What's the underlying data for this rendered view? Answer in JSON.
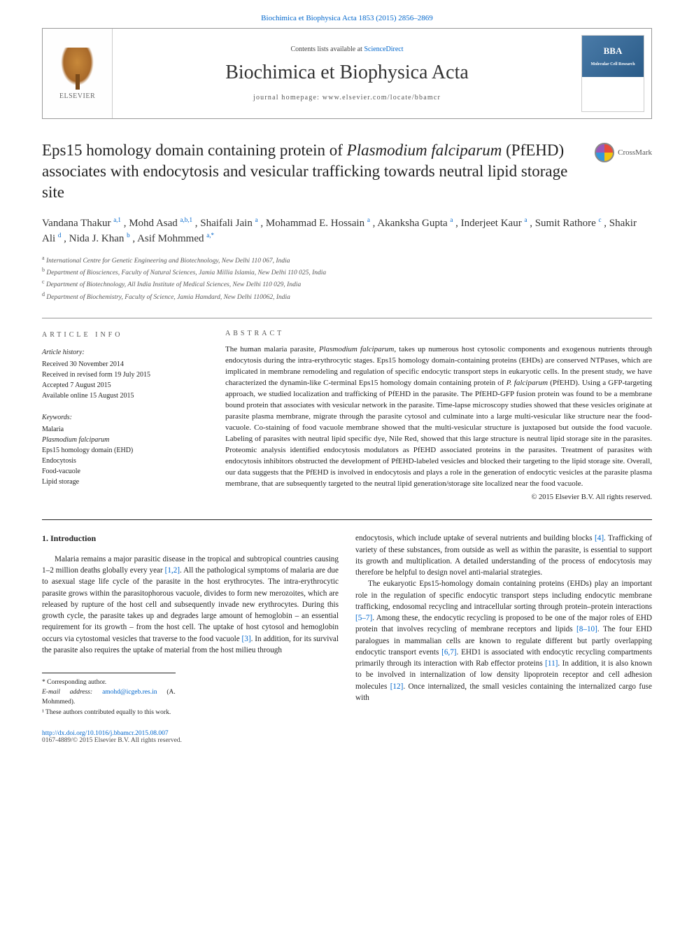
{
  "header": {
    "top_link_label": "Biochimica et Biophysica Acta 1853 (2015) 2856–2869",
    "contents_prefix": "Contents lists available at ",
    "contents_link": "ScienceDirect",
    "journal_title": "Biochimica et Biophysica Acta",
    "homepage_label": "journal homepage: www.elsevier.com/locate/bbamcr",
    "elsevier": "ELSEVIER",
    "cover_text": "BBA",
    "cover_sub": "Molecular Cell Research"
  },
  "crossmark": {
    "label": "CrossMark"
  },
  "title": {
    "pre": "Eps15 homology domain containing protein of ",
    "ital": "Plasmodium falciparum",
    "post": " (PfEHD) associates with endocytosis and vesicular trafficking towards neutral lipid storage site"
  },
  "authors": {
    "a1": "Vandana Thakur ",
    "a1sup": "a,1",
    "a2": ", Mohd Asad ",
    "a2sup": "a,b,1",
    "a3": ", Shaifali Jain ",
    "a3sup": "a",
    "a4": ", Mohammad E. Hossain ",
    "a4sup": "a",
    "a5": ", Akanksha Gupta ",
    "a5sup": "a",
    "a6": ", Inderjeet Kaur ",
    "a6sup": "a",
    "a7": ", Sumit Rathore ",
    "a7sup": "c",
    "a8": ", Shakir Ali ",
    "a8sup": "d",
    "a9": ", Nida J. Khan ",
    "a9sup": "b",
    "a10": ", Asif Mohmmed ",
    "a10sup": "a,*"
  },
  "affil": {
    "a": "International Centre for Genetic Engineering and Biotechnology, New Delhi 110 067, India",
    "b": "Department of Biosciences, Faculty of Natural Sciences, Jamia Millia Islamia, New Delhi 110 025, India",
    "c": "Department of Biotechnology, All India Institute of Medical Sciences, New Delhi 110 029, India",
    "d": "Department of Biochemistry, Faculty of Science, Jamia Hamdard, New Delhi 110062, India"
  },
  "info": {
    "head": "article info",
    "history_label": "Article history:",
    "h1": "Received 30 November 2014",
    "h2": "Received in revised form 19 July 2015",
    "h3": "Accepted 7 August 2015",
    "h4": "Available online 15 August 2015",
    "keywords_label": "Keywords:",
    "k1": "Malaria",
    "k2": "Plasmodium falciparum",
    "k3": "Eps15 homology domain (EHD)",
    "k4": "Endocytosis",
    "k5": "Food-vacuole",
    "k6": "Lipid storage"
  },
  "abstract": {
    "head": "abstract",
    "text_pre": "The human malaria parasite, ",
    "text_ital1": "Plasmodium falciparum",
    "text_mid": ", takes up numerous host cytosolic components and exogenous nutrients through endocytosis during the intra-erythrocytic stages. Eps15 homology domain-containing proteins (EHDs) are conserved NTPases, which are implicated in membrane remodeling and regulation of specific endocytic transport steps in eukaryotic cells. In the present study, we have characterized the dynamin-like C-terminal Eps15 homology domain containing protein of ",
    "text_ital2": "P. falciparum",
    "text_post": " (PfEHD). Using a GFP-targeting approach, we studied localization and trafficking of PfEHD in the parasite. The PfEHD-GFP fusion protein was found to be a membrane bound protein that associates with vesicular network in the parasite. Time-lapse microscopy studies showed that these vesicles originate at parasite plasma membrane, migrate through the parasite cytosol and culminate into a large multi-vesicular like structure near the food-vacuole. Co-staining of food vacuole membrane showed that the multi-vesicular structure is juxtaposed but outside the food vacuole. Labeling of parasites with neutral lipid specific dye, Nile Red, showed that this large structure is neutral lipid storage site in the parasites. Proteomic analysis identified endocytosis modulators as PfEHD associated proteins in the parasites. Treatment of parasites with endocytosis inhibitors obstructed the development of PfEHD-labeled vesicles and blocked their targeting to the lipid storage site. Overall, our data suggests that the PfEHD is involved in endocytosis and plays a role in the generation of endocytic vesicles at the parasite plasma membrane, that are subsequently targeted to the neutral lipid generation/storage site localized near the food vacuole.",
    "copyright": "© 2015 Elsevier B.V. All rights reserved."
  },
  "intro": {
    "head": "1. Introduction",
    "p1_a": "Malaria remains a major parasitic disease in the tropical and subtropical countries causing 1–2 million deaths globally every year ",
    "p1_c1": "[1,2]",
    "p1_b": ". All the pathological symptoms of malaria are due to asexual stage life cycle of the parasite in the host erythrocytes. The intra-erythrocytic parasite grows within the parasitophorous vacuole, divides to form new merozoites, which are released by rupture of the host cell and subsequently invade new erythrocytes. During this growth cycle, the parasite takes up and degrades large amount of hemoglobin – an essential requirement for its growth – from the host cell. The uptake of host cytosol and hemoglobin occurs via cytostomal vesicles that traverse to the food vacuole ",
    "p1_c2": "[3]",
    "p1_c": ". In addition, for its survival the parasite also requires the uptake of material from the host milieu through",
    "p2_a": "endocytosis, which include uptake of several nutrients and building blocks ",
    "p2_c1": "[4]",
    "p2_b": ". Trafficking of variety of these substances, from outside as well as within the parasite, is essential to support its growth and multiplication. A detailed understanding of the process of endocytosis may therefore be helpful to design novel anti-malarial strategies.",
    "p3_a": "The eukaryotic Eps15-homology domain containing proteins (EHDs) play an important role in the regulation of specific endocytic transport steps including endocytic membrane trafficking, endosomal recycling and intracellular sorting through protein–protein interactions ",
    "p3_c1": "[5–7]",
    "p3_b": ". Among these, the endocytic recycling is proposed to be one of the major roles of EHD protein that involves recycling of membrane receptors and lipids ",
    "p3_c2": "[8–10]",
    "p3_c": ". The four EHD paralogues in mammalian cells are known to regulate different but partly overlapping endocytic transport events ",
    "p3_c3": "[6,7]",
    "p3_d": ". EHD1 is associated with endocytic recycling compartments primarily through its interaction with Rab effector proteins ",
    "p3_c4": "[11]",
    "p3_e": ". In addition, it is also known to be involved in internalization of low density lipoprotein receptor and cell adhesion molecules ",
    "p3_c5": "[12]",
    "p3_f": ". Once internalized, the small vesicles containing the internalized cargo fuse with"
  },
  "footnotes": {
    "corr_label": "* Corresponding author.",
    "email_label": "E-mail address: ",
    "email": "amohd@icgeb.res.in",
    "email_who": " (A. Mohmmed).",
    "equal": "¹ These authors contributed equally to this work."
  },
  "footer": {
    "doi": "http://dx.doi.org/10.1016/j.bbamcr.2015.08.007",
    "issn": "0167-4889/© 2015 Elsevier B.V. All rights reserved."
  }
}
